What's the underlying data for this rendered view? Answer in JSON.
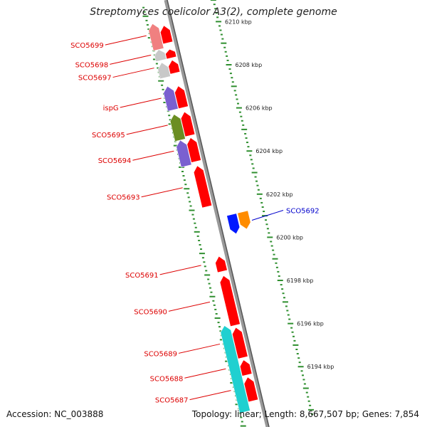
{
  "title": "Streptomyces coelicolor A3(2), complete genome",
  "accession_text": "Accession: NC_003888",
  "summary_text": "Topology: linear; Length: 8,667,507 bp; Genes: 7,854",
  "colors": {
    "red": "#ff0000",
    "pink": "#f08080",
    "gray": "#c8c8c8",
    "purple": "#7a60d0",
    "olive": "#6b8e23",
    "cyan": "#20d0d0",
    "blue": "#0018ff",
    "orange": "#ff8c00",
    "tick": "#2f8f2f",
    "label_red": "#dd0000",
    "label_blue": "#0000cc"
  },
  "scale_labels": [
    {
      "text": "6210 kbp",
      "kbp": 6210
    },
    {
      "text": "6208 kbp",
      "kbp": 6208
    },
    {
      "text": "6206 kbp",
      "kbp": 6206
    },
    {
      "text": "6204 kbp",
      "kbp": 6204
    },
    {
      "text": "6202 kbp",
      "kbp": 6202
    },
    {
      "text": "6200 kbp",
      "kbp": 6200
    },
    {
      "text": "6198 kbp",
      "kbp": 6198
    },
    {
      "text": "6196 kbp",
      "kbp": 6196
    },
    {
      "text": "6194 kbp",
      "kbp": 6194
    }
  ],
  "genes": [
    {
      "name": "SCO5699",
      "start": 6209.6,
      "end": 6210.4,
      "strand": "+",
      "color": "red"
    },
    {
      "name": "SCO5698",
      "start": 6208.9,
      "end": 6209.3,
      "strand": "+",
      "color": "red"
    },
    {
      "name": "SCO5697",
      "start": 6208.2,
      "end": 6208.8,
      "strand": "+",
      "color": "red"
    },
    {
      "name": "ispG",
      "start": 6206.6,
      "end": 6207.6,
      "strand": "+",
      "color": "red"
    },
    {
      "name": "SCO5695",
      "start": 6205.3,
      "end": 6206.4,
      "strand": "+",
      "color": "red"
    },
    {
      "name": "SCO5694",
      "start": 6204.1,
      "end": 6205.2,
      "strand": "+",
      "color": "red"
    },
    {
      "name": "SCO5693",
      "start": 6202.0,
      "end": 6203.9,
      "strand": "+",
      "color": "red"
    },
    {
      "name": "SCO5692",
      "start": 6200.5,
      "end": 6201.4,
      "strand": "-",
      "color": "blue"
    },
    {
      "name": "SCO5691",
      "start": 6199.0,
      "end": 6199.7,
      "strand": "+",
      "color": "red"
    },
    {
      "name": "SCO5690",
      "start": 6196.5,
      "end": 6198.8,
      "strand": "+",
      "color": "red"
    },
    {
      "name": "SCO5689",
      "start": 6195.0,
      "end": 6196.4,
      "strand": "+",
      "color": "red"
    },
    {
      "name": "SCO5688",
      "start": 6194.2,
      "end": 6194.9,
      "strand": "+",
      "color": "red"
    },
    {
      "name": "SCO5687",
      "start": 6193.0,
      "end": 6194.1,
      "strand": "+",
      "color": "red"
    }
  ],
  "features": [
    {
      "start": 6209.4,
      "end": 6210.6,
      "strand": "+",
      "color": "pink"
    },
    {
      "start": 6208.9,
      "end": 6209.4,
      "strand": "+",
      "color": "gray"
    },
    {
      "start": 6208.1,
      "end": 6208.8,
      "strand": "+",
      "color": "gray"
    },
    {
      "start": 6206.6,
      "end": 6207.7,
      "strand": "+",
      "color": "purple"
    },
    {
      "start": 6205.2,
      "end": 6206.4,
      "strand": "+",
      "color": "olive"
    },
    {
      "start": 6204.0,
      "end": 6205.2,
      "strand": "+",
      "color": "purple"
    },
    {
      "start": 6200.6,
      "end": 6201.4,
      "strand": "-",
      "color": "orange"
    },
    {
      "start": 6192.6,
      "end": 6196.6,
      "strand": "+",
      "color": "cyan"
    }
  ]
}
